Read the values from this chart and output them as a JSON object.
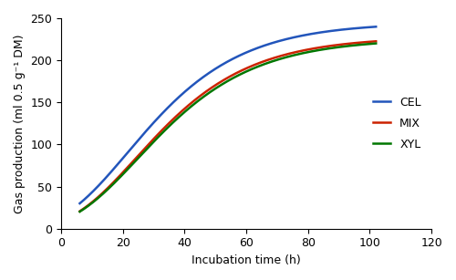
{
  "title": "",
  "xlabel": "Incubation time (h)",
  "ylabel": "Gas production (ml 0.5 g⁻¹ DM)",
  "xlim": [
    0,
    120
  ],
  "ylim": [
    0,
    250
  ],
  "xticks": [
    0,
    20,
    40,
    60,
    80,
    100,
    120
  ],
  "yticks": [
    0,
    50,
    100,
    150,
    200,
    250
  ],
  "series": [
    {
      "label": "CEL",
      "color": "#2255BB",
      "A": 245,
      "b": 2.8,
      "c": 0.048
    },
    {
      "label": "MIX",
      "color": "#CC2200",
      "A": 228,
      "b": 3.2,
      "c": 0.048
    },
    {
      "label": "XYL",
      "color": "#007700",
      "A": 226,
      "b": 3.2,
      "c": 0.047
    }
  ],
  "legend_loc": "center right",
  "linewidth": 1.8,
  "figsize": [
    5.0,
    3.07
  ],
  "dpi": 100
}
